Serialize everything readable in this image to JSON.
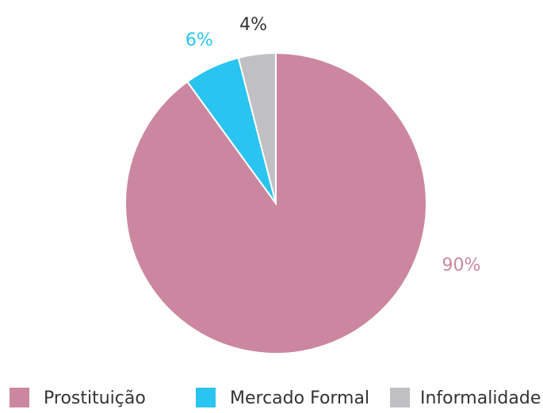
{
  "chart_data": {
    "type": "pie",
    "categories": [
      "Prostituição",
      "Mercado Formal",
      "Informalidade"
    ],
    "values": [
      90,
      6,
      4
    ],
    "value_labels": [
      "90%",
      "6%",
      "4%"
    ],
    "colors": [
      "#cc87a0",
      "#29c4f0",
      "#c0c0c4"
    ],
    "label_colors": [
      "#cc87a0",
      "#29c4f0",
      "#333333"
    ],
    "legend": "bottom"
  }
}
